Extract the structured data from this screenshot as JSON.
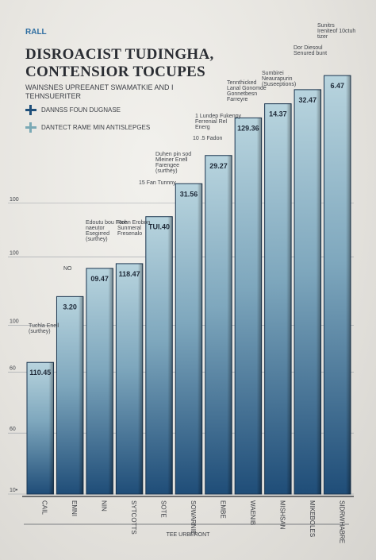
{
  "header": {
    "brand": "RALL",
    "title": "DISROACIST TUDINGHA, CONTENSIOR TOCUPES",
    "subtitle": "WAINSNES UPREEANET SWAMATKIE AND I TEHNSUERITER"
  },
  "legend": [
    {
      "label": "DANNSS FOUN DUGNASE",
      "color": "#1f4f7a"
    },
    {
      "label": "DANTECT RAME MIN ANTISLEPGES",
      "color": "#7aa9b5"
    }
  ],
  "chart_data": {
    "type": "bar",
    "title": "DISROACIST TUDINGHA, CONTENSIOR TOCUPES",
    "xlabel": "TEE URBERONT",
    "ylabel": "",
    "ylim": [
      0,
      100
    ],
    "y_ticks": [
      "10•",
      "60",
      "60",
      "100",
      "100",
      "100"
    ],
    "categories": [
      "CAIL",
      "EMNI",
      "NIN",
      "SYTCOTTS",
      "SOTE",
      "SOWARNIE",
      "EMBE",
      "WAENIB",
      "MISHSAN",
      "MIKEBOLES",
      "SIDRWHABRE"
    ],
    "value_labels": [
      "110.45",
      "3.20",
      "09.47",
      "118.47",
      "TUI.40",
      "31.56",
      "29.27",
      "129.36",
      "14.37",
      "32.47",
      "6.47"
    ],
    "values": [
      28,
      42,
      48,
      49,
      59,
      66,
      72,
      80,
      83,
      86,
      89
    ],
    "series": [
      {
        "values": [
          28,
          42,
          48,
          49,
          59,
          66,
          72,
          80,
          83,
          86,
          89
        ]
      }
    ],
    "annotations": [
      "Tuchla Enell (surthey)",
      "NO",
      "Edoutu bou Fore naeutor Esegirred (surthey)",
      "Rohn Erobon Sunmeral Fresenalo",
      "15 Fan Tunnny",
      "Duhen pin sod Mleiner Enell Farengee (surthey)",
      "10 .5 Fadon",
      "1 Lundep Fukenpy Ferrenial Rel Energ",
      "Tennthicked Lanal Gonomde Gonnetbesn Farreyre",
      "Sumbirei Neaurapurin (Suseeptions)",
      "Dor Diesoul Senured bunt",
      "Sunitrs Ireniteof 10ctuh tizer"
    ],
    "grid": false,
    "legend_position": "top-left"
  }
}
